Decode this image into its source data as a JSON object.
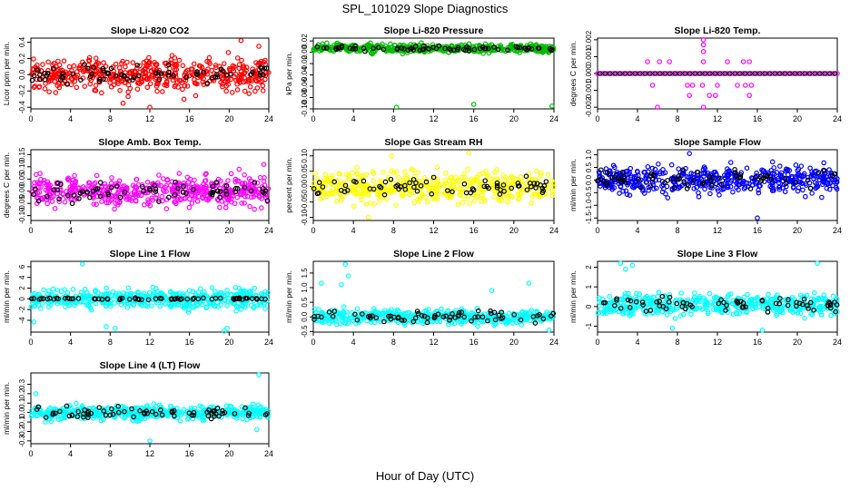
{
  "page": {
    "title": "SPL_101029  Slope Diagnostics",
    "xlabel": "Hour of Day (UTC)"
  },
  "chart_data": [
    {
      "type": "scatter",
      "title": "Slope Li-820 CO2",
      "ylabel": "Licor ppm per min.",
      "color": "#ff0000",
      "xlim": [
        0,
        24
      ],
      "ylim": [
        -0.42,
        0.45
      ],
      "xticks": [
        0,
        4,
        8,
        12,
        16,
        20,
        24
      ],
      "yticks": [
        -0.4,
        -0.2,
        0.0,
        0.2,
        0.4
      ],
      "ytick_labels": [
        "-0.4",
        "-0.2",
        "0.0",
        "0.2",
        "0.4"
      ],
      "pattern": "noise",
      "center": 0.0,
      "spread": 0.17,
      "n_color": 480,
      "n_black": 70,
      "black_spread": 0.09,
      "outliers": [
        [
          12,
          -0.4
        ],
        [
          21.2,
          0.42
        ],
        [
          23,
          0.35
        ],
        [
          9.3,
          -0.35
        ]
      ]
    },
    {
      "type": "scatter",
      "title": "Slope Li-820 Pressure",
      "ylabel": "kPa per min.",
      "color": "#00bb00",
      "xlim": [
        0,
        24
      ],
      "ylim": [
        -0.1,
        0.025
      ],
      "xticks": [
        0,
        4,
        8,
        12,
        16,
        20,
        24
      ],
      "yticks": [
        -0.1,
        -0.08,
        -0.06,
        -0.04,
        -0.02,
        0.0,
        0.02
      ],
      "ytick_labels": [
        "-0.10",
        "-0.08",
        "-0.06",
        "-0.04",
        "-0.02",
        "0.00",
        "0.02"
      ],
      "pattern": "noise",
      "center": 0.007,
      "spread": 0.006,
      "n_color": 480,
      "n_black": 70,
      "black_spread": 0.004,
      "outliers": [
        [
          8.3,
          -0.097
        ],
        [
          16,
          -0.092
        ],
        [
          23.8,
          -0.095
        ]
      ]
    },
    {
      "type": "scatter",
      "title": "Slope Li-820 Temp.",
      "ylabel": "degrees C per min.",
      "color": "#ff00ff",
      "xlim": [
        0,
        24
      ],
      "ylim": [
        -0.0021,
        0.0021
      ],
      "xticks": [
        0,
        4,
        8,
        12,
        16,
        20,
        24
      ],
      "yticks": [
        -0.002,
        -0.001,
        0.0,
        0.001,
        0.002
      ],
      "ytick_labels": [
        "-0.002",
        "-0.001",
        "0.000",
        "0.001",
        "0.002"
      ],
      "pattern": "quantized",
      "center": 0.0,
      "spread": 0.0,
      "n_color": 48,
      "n_black": 48,
      "black_spread": 0.0,
      "outliers": [
        [
          10.6,
          0.002
        ],
        [
          10.6,
          0.0017
        ],
        [
          10.6,
          0.0013
        ],
        [
          10.6,
          0.0007
        ],
        [
          5,
          0.0007
        ],
        [
          6.2,
          0.0007
        ],
        [
          7.2,
          0.0007
        ],
        [
          13,
          0.0007
        ],
        [
          14.6,
          0.0007
        ],
        [
          15.2,
          0.0007
        ],
        [
          5.5,
          -0.0007
        ],
        [
          9,
          -0.0007
        ],
        [
          9.5,
          -0.0007
        ],
        [
          10.5,
          -0.0007
        ],
        [
          12,
          -0.0007
        ],
        [
          14,
          -0.0007
        ],
        [
          14.8,
          -0.0007
        ],
        [
          15.4,
          -0.0007
        ],
        [
          9.2,
          -0.0013
        ],
        [
          11.2,
          -0.0013
        ],
        [
          11.8,
          -0.0013
        ],
        [
          15.2,
          -0.0013
        ],
        [
          6,
          -0.002
        ],
        [
          10.6,
          -0.002
        ]
      ]
    },
    {
      "type": "scatter",
      "title": "Slope Amb. Box Temp.",
      "ylabel": "degrees C per min.",
      "color": "#ff00ff",
      "xlim": [
        0,
        24
      ],
      "ylim": [
        -0.12,
        0.17
      ],
      "xticks": [
        0,
        4,
        8,
        12,
        16,
        20,
        24
      ],
      "yticks": [
        -0.1,
        -0.05,
        0.0,
        0.05,
        0.1,
        0.15
      ],
      "ytick_labels": [
        "-0.10",
        "-0.05",
        "0.00",
        "0.05",
        "0.10",
        "0.15"
      ],
      "pattern": "noise",
      "center": 0.0,
      "spread": 0.05,
      "n_color": 480,
      "n_black": 70,
      "black_spread": 0.03,
      "outliers": [
        [
          23.5,
          0.11
        ],
        [
          21,
          0.09
        ]
      ]
    },
    {
      "type": "scatter",
      "title": "Slope Gas Stream RH",
      "ylabel": "percent per min.",
      "color": "#ffff00",
      "xlim": [
        0,
        24
      ],
      "ylim": [
        -0.11,
        0.12
      ],
      "xticks": [
        0,
        4,
        8,
        12,
        16,
        20,
        24
      ],
      "yticks": [
        -0.1,
        -0.05,
        0.0,
        0.05,
        0.1
      ],
      "ytick_labels": [
        "-0.10",
        "-0.05",
        "0.00",
        "0.05",
        "0.10"
      ],
      "pattern": "noise",
      "center": 0.0,
      "spread": 0.04,
      "n_color": 480,
      "n_black": 70,
      "black_spread": 0.03,
      "outliers": [
        [
          5.5,
          -0.1
        ],
        [
          15.5,
          0.11
        ],
        [
          7.8,
          0.1
        ]
      ]
    },
    {
      "type": "scatter",
      "title": "Slope Sample Flow",
      "ylabel": "ml/min per min.",
      "color": "#0000ff",
      "xlim": [
        0,
        24
      ],
      "ylim": [
        -1.6,
        1.2
      ],
      "xticks": [
        0,
        4,
        8,
        12,
        16,
        20,
        24
      ],
      "yticks": [
        -1.5,
        -1.0,
        -0.5,
        0.0,
        0.5,
        1.0
      ],
      "ytick_labels": [
        "-1.5",
        "-1.0",
        "-0.5",
        "0.0",
        "0.5",
        "1.0"
      ],
      "pattern": "noise",
      "center": 0.0,
      "spread": 0.45,
      "n_color": 480,
      "n_black": 70,
      "black_spread": 0.3,
      "outliers": [
        [
          16,
          -1.5
        ],
        [
          9.2,
          1.05
        ]
      ]
    },
    {
      "type": "scatter",
      "title": "Slope Line 1 Flow",
      "ylabel": "ml/min per min.",
      "color": "#00ffff",
      "xlim": [
        0,
        24
      ],
      "ylim": [
        -6.2,
        7
      ],
      "xticks": [
        0,
        4,
        8,
        12,
        16,
        20,
        24
      ],
      "yticks": [
        -4,
        -2,
        0,
        2,
        4,
        6
      ],
      "ytick_labels": [
        "-4",
        "-2",
        "0",
        "2",
        "4",
        "6"
      ],
      "pattern": "noise",
      "center": 0.0,
      "spread": 1.5,
      "n_color": 480,
      "n_black": 70,
      "black_spread": 0.15,
      "outliers": [
        [
          5.2,
          6.5
        ],
        [
          7.6,
          -5.2
        ],
        [
          0.3,
          -4.3
        ],
        [
          8.5,
          -5.5
        ],
        [
          19.8,
          -5.5
        ],
        [
          19.5,
          -6
        ]
      ]
    },
    {
      "type": "scatter",
      "title": "Slope Line 2 Flow",
      "ylabel": "ml/min per min.",
      "color": "#00ffff",
      "xlim": [
        0,
        24
      ],
      "ylim": [
        -0.52,
        1.9
      ],
      "xticks": [
        0,
        4,
        8,
        12,
        16,
        20,
        24
      ],
      "yticks": [
        -0.5,
        0.0,
        0.5,
        1.0,
        1.5
      ],
      "ytick_labels": [
        "-0.5",
        "0.0",
        "0.5",
        "1.0",
        "1.5"
      ],
      "pattern": "noise",
      "center": 0.0,
      "spread": 0.2,
      "n_color": 480,
      "n_black": 70,
      "black_spread": 0.15,
      "outliers": [
        [
          3.2,
          1.8
        ],
        [
          3.5,
          1.4
        ],
        [
          2.8,
          1.1
        ],
        [
          0.8,
          1.15
        ],
        [
          17.8,
          0.9
        ],
        [
          21.5,
          1.15
        ],
        [
          23.5,
          -0.45
        ]
      ]
    },
    {
      "type": "scatter",
      "title": "Slope Line 3 Flow",
      "ylabel": "ml/min per min.",
      "color": "#00ffff",
      "xlim": [
        0,
        24
      ],
      "ylim": [
        -1.3,
        2.3
      ],
      "xticks": [
        0,
        4,
        8,
        12,
        16,
        20,
        24
      ],
      "yticks": [
        -1,
        0,
        1,
        2
      ],
      "ytick_labels": [
        "-1",
        "0",
        "1",
        "2"
      ],
      "pattern": "noise",
      "center": 0.1,
      "spread": 0.45,
      "n_color": 480,
      "n_black": 70,
      "black_spread": 0.3,
      "outliers": [
        [
          2.3,
          2.2
        ],
        [
          3.5,
          2.1
        ],
        [
          2.8,
          1.9
        ],
        [
          22,
          2.2
        ],
        [
          16.5,
          -1.2
        ],
        [
          7.5,
          -1.1
        ]
      ]
    },
    {
      "type": "scatter",
      "title": "Slope Line 4 (LT) Flow",
      "ylabel": "ml/min per min.",
      "color": "#00ffff",
      "xlim": [
        0,
        24
      ],
      "ylim": [
        -0.33,
        0.42
      ],
      "xticks": [
        0,
        4,
        8,
        12,
        16,
        20,
        24
      ],
      "yticks": [
        -0.3,
        -0.2,
        -0.1,
        0.0,
        0.1,
        0.2,
        0.3
      ],
      "ytick_labels": [
        "-0.3",
        "-0.2",
        "-0.1",
        "0.0",
        "0.1",
        "0.2",
        "0.3"
      ],
      "pattern": "noise",
      "center": 0.0,
      "spread": 0.06,
      "n_color": 480,
      "n_black": 70,
      "black_spread": 0.05,
      "outliers": [
        [
          23,
          0.4
        ],
        [
          12,
          -0.3
        ],
        [
          0.5,
          0.2
        ],
        [
          22.8,
          -0.18
        ]
      ]
    }
  ]
}
